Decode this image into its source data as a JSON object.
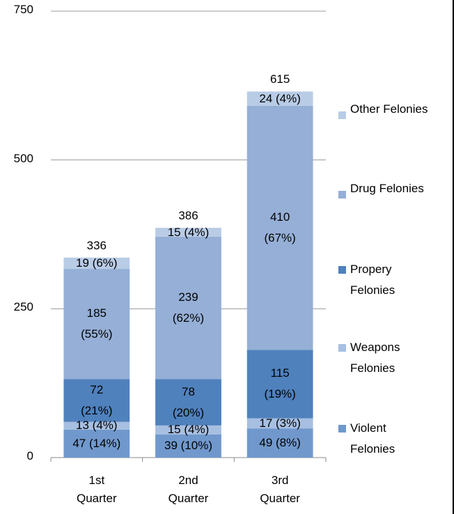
{
  "chart_data": {
    "type": "stacked-bar",
    "categories": [
      "1st Quarter",
      "2nd Quarter",
      "3rd Quarter"
    ],
    "series": [
      {
        "name": "Violent Felonies",
        "color": "#7098cc",
        "values": [
          47,
          39,
          49
        ],
        "value_labels": [
          "47 (14%)",
          "39 (10%)",
          "49 (8%)"
        ]
      },
      {
        "name": "Weapons Felonies",
        "color": "#a7bfe1",
        "values": [
          13,
          15,
          17
        ],
        "value_labels": [
          "13 (4%)",
          "15 (4%)",
          "17 (3%)"
        ]
      },
      {
        "name": "Propery Felonies",
        "color": "#4f81bd",
        "values": [
          72,
          78,
          115
        ],
        "value_labels": [
          "72 (21%)",
          "78 (20%)",
          "115 (19%)"
        ]
      },
      {
        "name": "Drug Felonies",
        "color": "#95afd6",
        "values": [
          185,
          239,
          410
        ],
        "value_labels": [
          "185 (55%)",
          "239 (62%)",
          "410 (67%)"
        ]
      },
      {
        "name": "Other Felonies",
        "color": "#b9cce6",
        "values": [
          19,
          15,
          24
        ],
        "value_labels": [
          "19 (6%)",
          "15 (4%)",
          "24 (4%)"
        ]
      }
    ],
    "totals": [
      336,
      386,
      615
    ],
    "ylim": [
      0,
      750
    ],
    "yticks": [
      0,
      250,
      500,
      750
    ],
    "grid": true,
    "legend": "right"
  }
}
